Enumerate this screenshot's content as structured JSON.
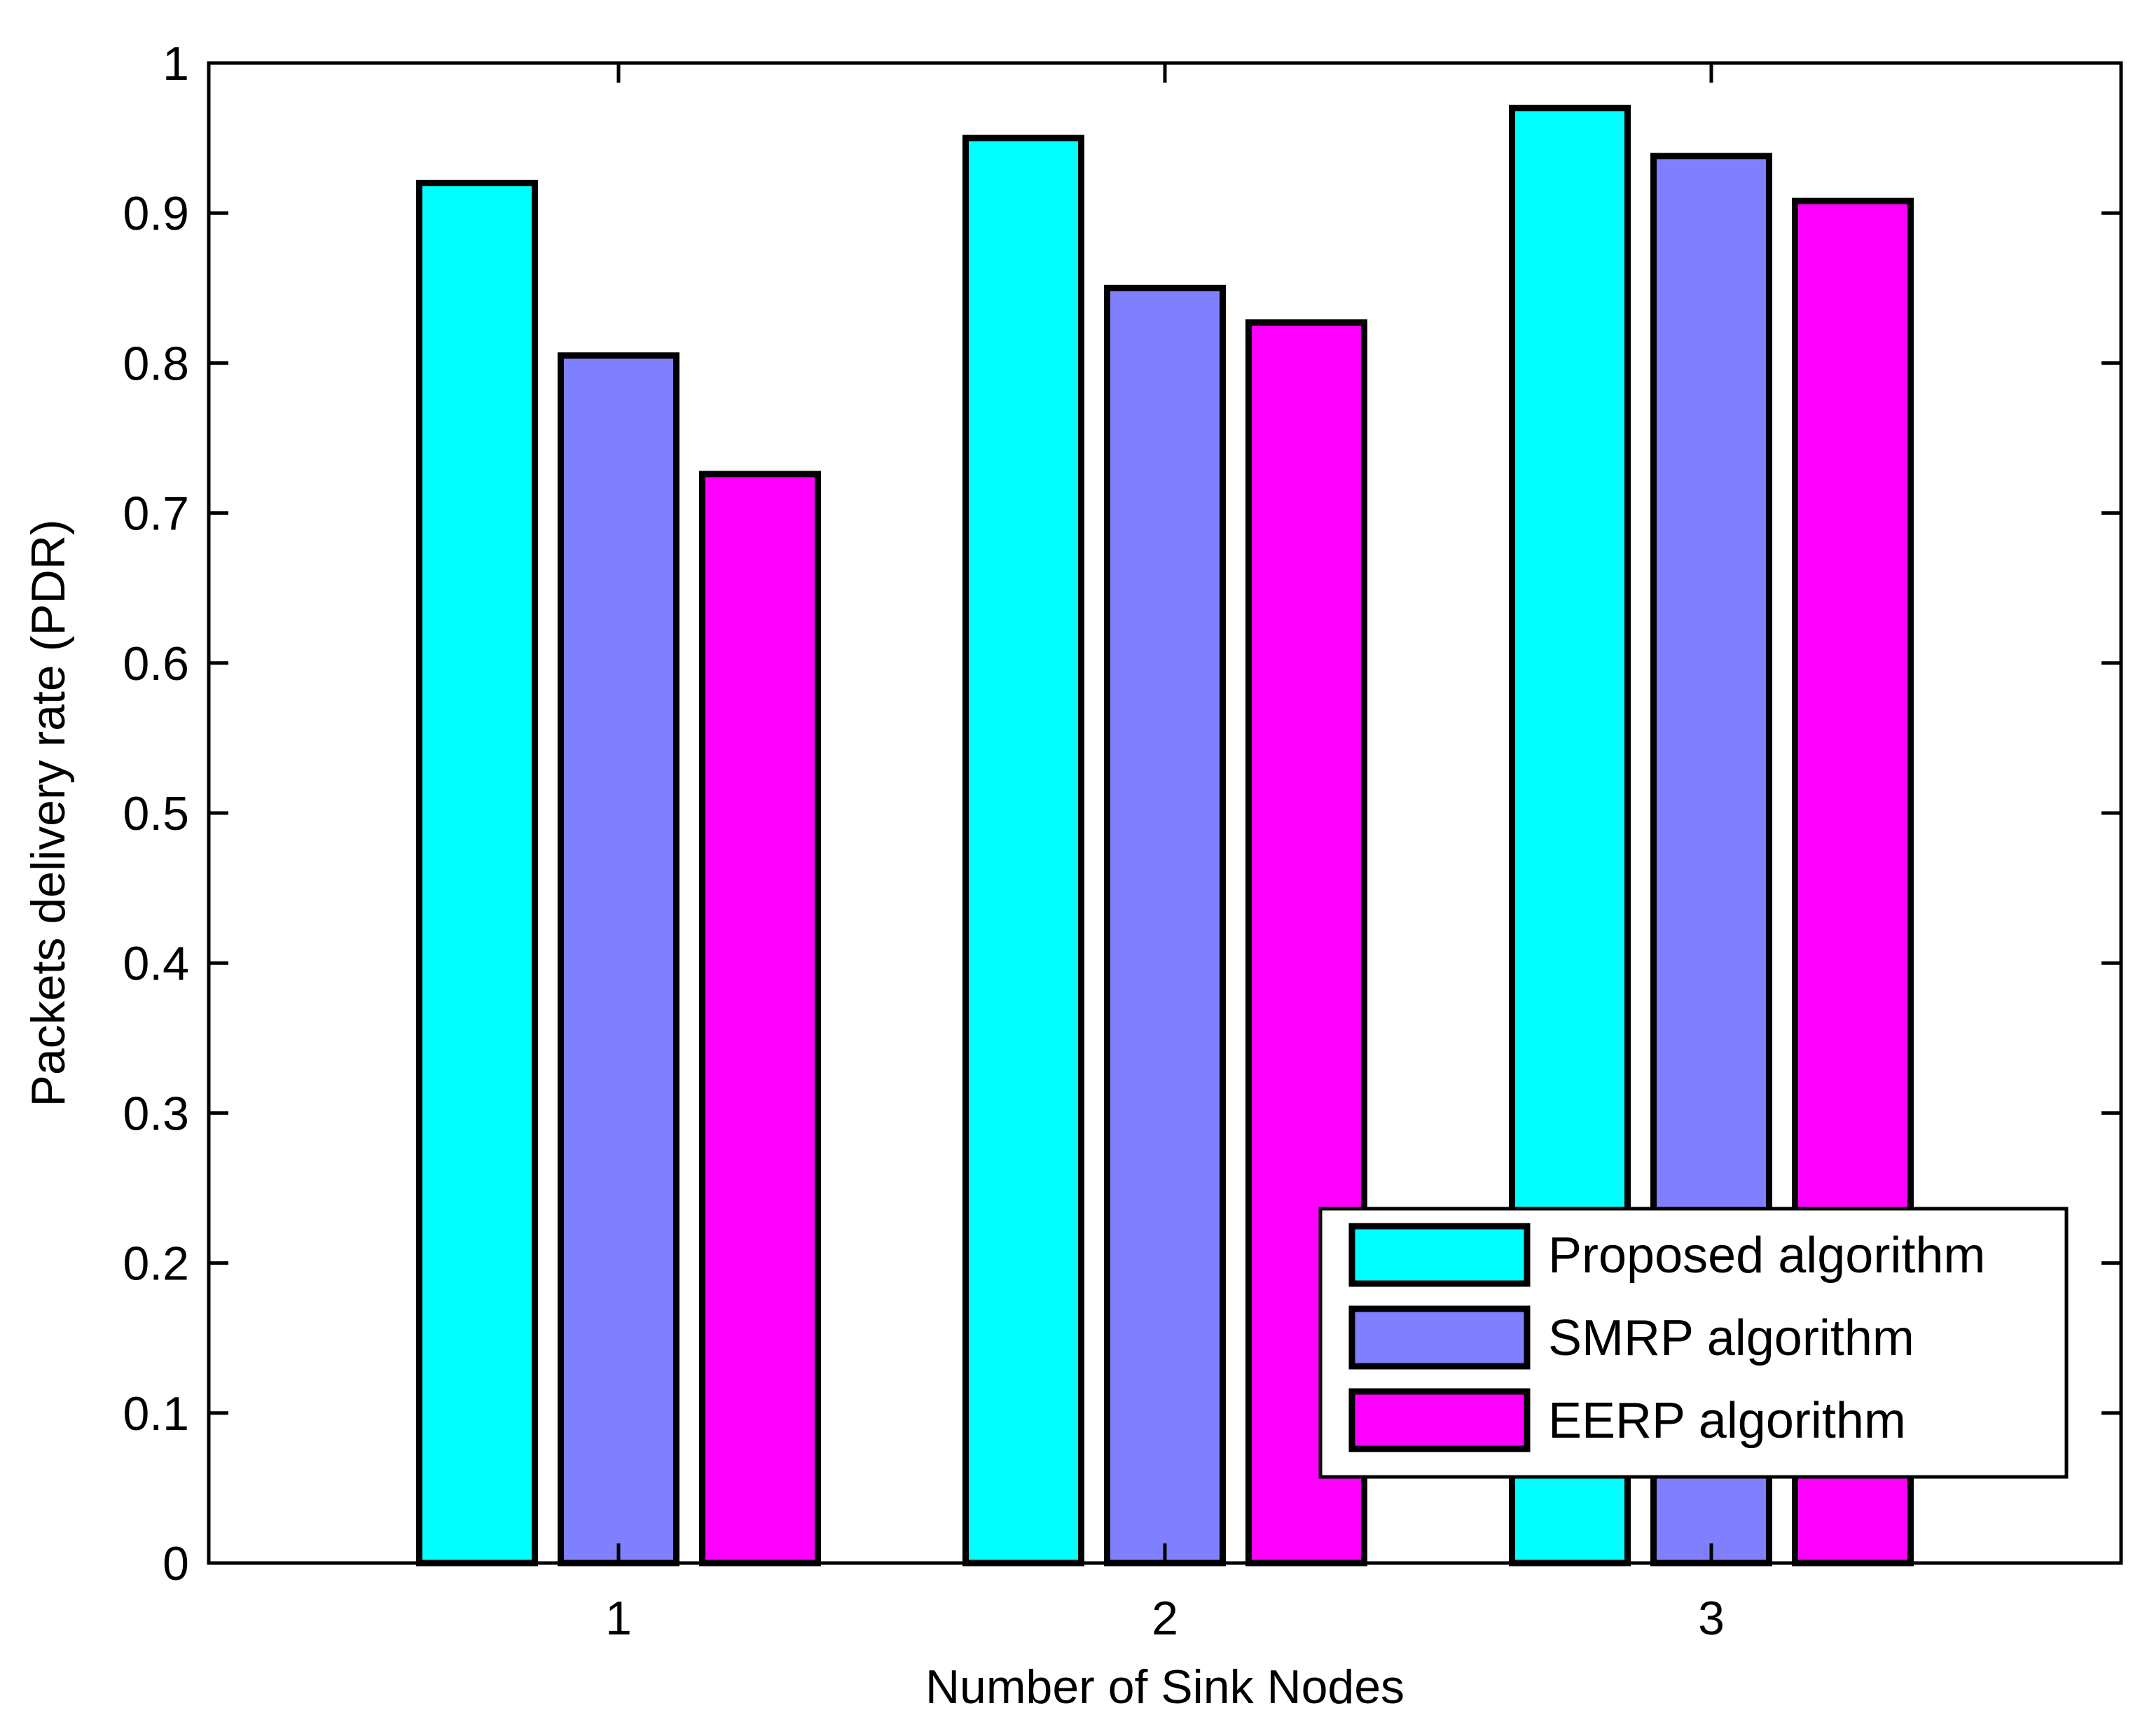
{
  "chart_data": {
    "type": "bar",
    "title": "",
    "xlabel": "Number of Sink Nodes",
    "ylabel": "Packets delivery rate (PDR)",
    "categories": [
      "1",
      "2",
      "3"
    ],
    "ylim": [
      0,
      1
    ],
    "yticks": [
      "0",
      "0.1",
      "0.2",
      "0.3",
      "0.4",
      "0.5",
      "0.6",
      "0.7",
      "0.8",
      "0.9",
      "1"
    ],
    "grid": false,
    "legend_position": "bottom-right",
    "series": [
      {
        "name": "Proposed algorithm",
        "color": "#00ffff",
        "values": [
          0.92,
          0.95,
          0.97
        ]
      },
      {
        "name": "SMRP algorithm",
        "color": "#8080ff",
        "values": [
          0.805,
          0.85,
          0.938
        ]
      },
      {
        "name": "EERP algorithm",
        "color": "#ff00ff",
        "values": [
          0.726,
          0.827,
          0.908
        ]
      }
    ]
  }
}
